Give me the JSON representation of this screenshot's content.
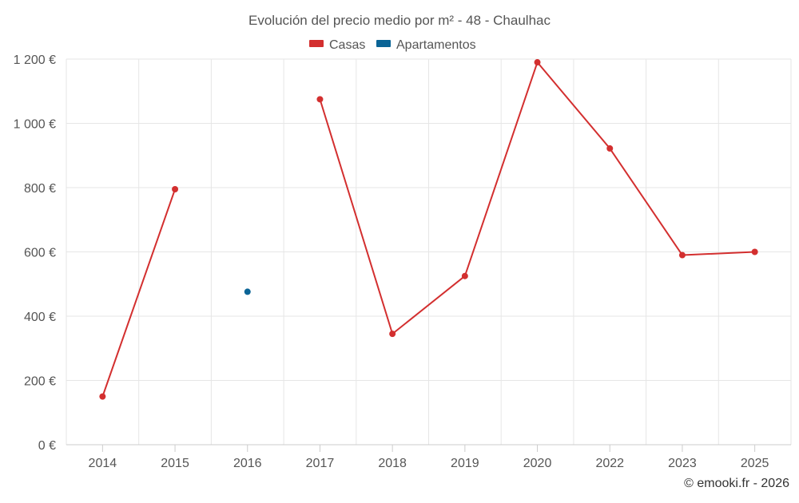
{
  "chart_data": {
    "type": "line",
    "title": "Evolución del precio medio por m² - 48 - Chaulhac",
    "categories": [
      "2014",
      "2015",
      "2016",
      "2017",
      "2018",
      "2019",
      "2020",
      "2022",
      "2023",
      "2025"
    ],
    "ylim": [
      0,
      1200
    ],
    "yticks": [
      0,
      200,
      400,
      600,
      800,
      1000,
      1200
    ],
    "ytick_labels": [
      "0 €",
      "200 €",
      "400 €",
      "600 €",
      "800 €",
      "1 000 €",
      "1 200 €"
    ],
    "xlabel": "",
    "ylabel": "",
    "grid": true,
    "legend_position": "top-center",
    "series": [
      {
        "name": "Casas",
        "color": "#d32f2f",
        "values": [
          150,
          795,
          null,
          1075,
          345,
          525,
          1190,
          922,
          590,
          600
        ]
      },
      {
        "name": "Apartamentos",
        "color": "#0a6496",
        "values": [
          null,
          null,
          476,
          null,
          null,
          null,
          null,
          null,
          null,
          null
        ]
      }
    ]
  },
  "credit": "© emooki.fr - 2026"
}
